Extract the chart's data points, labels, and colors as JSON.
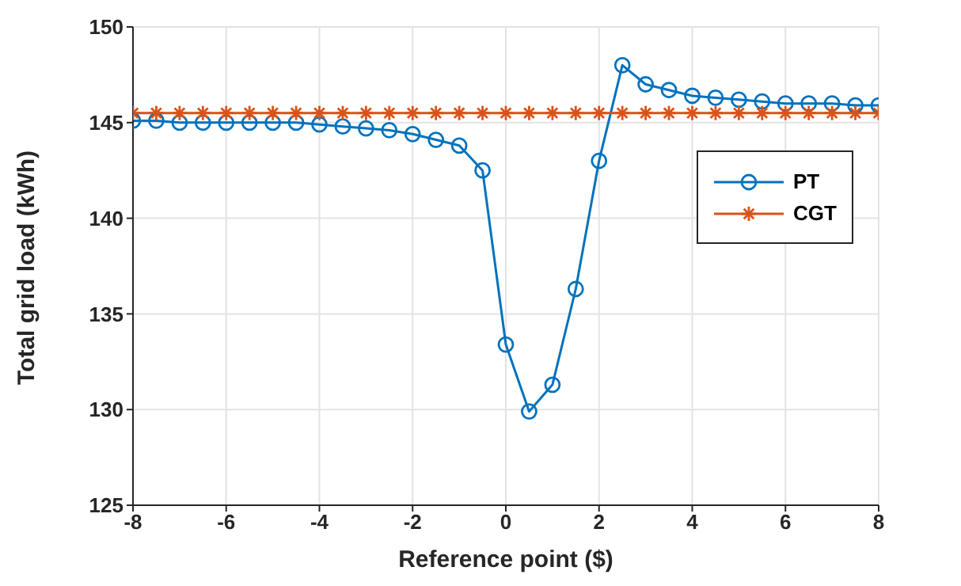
{
  "chart_data": {
    "type": "line",
    "xlabel": "Reference point ($)",
    "ylabel": "Total grid load (kWh)",
    "x": [
      -8,
      -7.5,
      -7,
      -6.5,
      -6,
      -5.5,
      -5,
      -4.5,
      -4,
      -3.5,
      -3,
      -2.5,
      -2,
      -1.5,
      -1,
      -0.5,
      0,
      0.5,
      1,
      1.5,
      2,
      2.5,
      3,
      3.5,
      4,
      4.5,
      5,
      5.5,
      6,
      6.5,
      7,
      7.5,
      8
    ],
    "series": [
      {
        "name": "PT",
        "color": "#0072bd",
        "marker": "circle",
        "values": [
          145.1,
          145.1,
          145.0,
          145.0,
          145.0,
          145.0,
          145.0,
          145.0,
          144.9,
          144.8,
          144.7,
          144.6,
          144.4,
          144.1,
          143.8,
          142.5,
          133.4,
          129.9,
          131.3,
          136.3,
          143.0,
          148.0,
          147.0,
          146.7,
          146.4,
          146.3,
          146.2,
          146.1,
          146.0,
          146.0,
          146.0,
          145.9,
          145.9
        ]
      },
      {
        "name": "CGT",
        "color": "#d95319",
        "marker": "cross",
        "values": [
          145.5,
          145.5,
          145.5,
          145.5,
          145.5,
          145.5,
          145.5,
          145.5,
          145.5,
          145.5,
          145.5,
          145.5,
          145.5,
          145.5,
          145.5,
          145.5,
          145.5,
          145.5,
          145.5,
          145.5,
          145.5,
          145.5,
          145.5,
          145.5,
          145.5,
          145.5,
          145.5,
          145.5,
          145.5,
          145.5,
          145.5,
          145.5,
          145.5
        ]
      }
    ],
    "xlim": [
      -8,
      8
    ],
    "xticks": [
      -8,
      -6,
      -4,
      -2,
      0,
      2,
      4,
      6,
      8
    ],
    "ylim": [
      125,
      150
    ],
    "yticks": [
      125,
      130,
      135,
      140,
      145,
      150
    ],
    "grid": true,
    "legend": "top right",
    "line_style": "solid"
  }
}
